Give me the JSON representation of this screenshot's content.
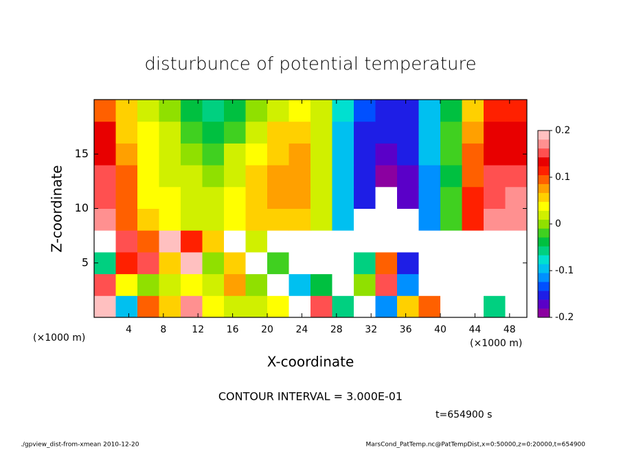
{
  "chart_data": {
    "type": "heatmap",
    "title": "disturbunce of potential temperature",
    "xlabel": "X-coordinate",
    "ylabel": "Z-coordinate",
    "xunit": "(×1000 m)",
    "yunit": "(×1000 m)",
    "contour_note": "CONTOUR INTERVAL = 3.000E-01",
    "time_label": "t=654900 s",
    "footer_left": "./gpview_dist-from-xmean  2010-12-20",
    "footer_right": "MarsCond_PatTemp.nc@PatTempDist,x=0:50000,z=0:20000,t=654900",
    "xlim": [
      0,
      50
    ],
    "ylim": [
      0,
      20
    ],
    "xticks": [
      4,
      8,
      12,
      16,
      20,
      24,
      28,
      32,
      36,
      40,
      44,
      48
    ],
    "yticks": [
      5,
      10,
      15
    ],
    "x": [
      1.25,
      3.75,
      6.25,
      8.75,
      11.25,
      13.75,
      16.25,
      18.75,
      21.25,
      23.75,
      26.25,
      28.75,
      31.25,
      33.75,
      36.25,
      38.75,
      41.25,
      43.75,
      46.25,
      48.75
    ],
    "y": [
      1,
      3,
      5,
      7,
      9,
      11,
      13,
      15,
      17,
      19
    ],
    "z": [
      [
        0.2,
        -0.1,
        0.1,
        0.05,
        0.18,
        0.04,
        0.02,
        0.01,
        0.03,
        0.3,
        0.15,
        -0.05,
        0.3,
        -0.12,
        0.05,
        0.1,
        0.3,
        0.3,
        -0.05,
        0.3
      ],
      [
        0.15,
        0.03,
        0.0,
        0.02,
        0.03,
        0.01,
        0.08,
        0.0,
        0.3,
        -0.1,
        -0.03,
        0.3,
        0.0,
        0.15,
        -0.12,
        0.3,
        0.3,
        0.3,
        0.3,
        0.3
      ],
      [
        -0.05,
        0.12,
        0.15,
        0.05,
        0.2,
        0.0,
        0.05,
        0.3,
        -0.02,
        0.3,
        0.3,
        0.3,
        -0.05,
        0.1,
        -0.15,
        0.3,
        0.3,
        0.3,
        0.3,
        0.3
      ],
      [
        0.3,
        0.15,
        0.1,
        0.2,
        0.12,
        0.05,
        -0.3,
        0.02,
        0.3,
        0.3,
        0.3,
        0.3,
        -0.3,
        0.3,
        0.3,
        0.3,
        0.3,
        0.3,
        0.3,
        0.3
      ],
      [
        0.18,
        0.1,
        0.05,
        0.03,
        0.02,
        0.02,
        0.03,
        0.05,
        0.06,
        0.06,
        0.02,
        -0.1,
        -0.3,
        -0.3,
        -0.3,
        -0.12,
        -0.02,
        0.12,
        0.17,
        0.18
      ],
      [
        0.16,
        0.09,
        0.04,
        0.03,
        0.02,
        0.01,
        0.03,
        0.05,
        0.07,
        0.07,
        0.02,
        -0.1,
        -0.16,
        -0.3,
        -0.17,
        -0.11,
        -0.02,
        0.11,
        0.16,
        0.17
      ],
      [
        0.15,
        0.09,
        0.04,
        0.02,
        0.01,
        0.0,
        0.02,
        0.05,
        0.07,
        0.07,
        0.02,
        -0.1,
        -0.16,
        -0.19,
        -0.17,
        -0.11,
        -0.03,
        0.1,
        0.15,
        0.15
      ],
      [
        0.14,
        0.08,
        0.04,
        0.02,
        0.0,
        -0.01,
        0.01,
        0.04,
        0.06,
        0.07,
        0.02,
        -0.1,
        -0.16,
        -0.18,
        -0.16,
        -0.1,
        -0.02,
        0.09,
        0.14,
        0.14
      ],
      [
        0.13,
        0.06,
        0.03,
        0.01,
        -0.02,
        -0.03,
        -0.01,
        0.02,
        0.05,
        0.06,
        0.02,
        -0.1,
        -0.15,
        -0.16,
        -0.15,
        -0.1,
        -0.02,
        0.08,
        0.13,
        0.13
      ],
      [
        0.1,
        0.05,
        0.02,
        0.0,
        -0.04,
        -0.05,
        -0.03,
        0.0,
        0.02,
        0.04,
        0.02,
        -0.08,
        -0.14,
        -0.15,
        -0.15,
        -0.1,
        -0.03,
        0.06,
        0.12,
        0.12
      ]
    ],
    "zlim": [
      -0.2,
      0.2
    ],
    "colorbar_ticks": [
      -0.2,
      -0.1,
      0,
      0.1,
      0.2
    ],
    "colors": [
      "#8b00a0",
      "#5a00c8",
      "#1e1ee6",
      "#0050ff",
      "#0090ff",
      "#00c0f0",
      "#00e0d0",
      "#00d080",
      "#00c040",
      "#40d020",
      "#90e000",
      "#d0f000",
      "#ffff00",
      "#ffd000",
      "#ffa000",
      "#ff6000",
      "#ff2000",
      "#e80000",
      "#ff5050",
      "#ff9090",
      "#ffc0c0"
    ],
    "out_of_range_color": "#ffffff"
  }
}
